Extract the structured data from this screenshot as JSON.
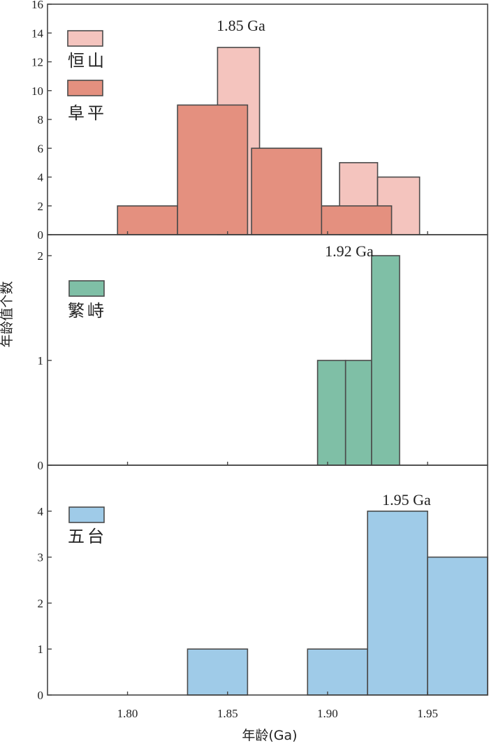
{
  "chart_data": [
    {
      "type": "bar",
      "panel": "top",
      "title": "",
      "annotation": "1.85 Ga",
      "xlim": [
        1.76,
        1.98
      ],
      "ylim": [
        0,
        16
      ],
      "yticks": [
        "0",
        "2",
        "4",
        "6",
        "8",
        "10",
        "12",
        "14",
        "16"
      ],
      "series": [
        {
          "name": "恒山",
          "color": "#F4C4BE",
          "bars": [
            {
              "x0": 1.845,
              "x1": 1.866,
              "value": 13
            },
            {
              "x0": 1.866,
              "x1": 1.886,
              "value": 6
            },
            {
              "x0": 1.906,
              "x1": 1.925,
              "value": 5
            },
            {
              "x0": 1.925,
              "x1": 1.946,
              "value": 4
            }
          ]
        },
        {
          "name": "阜平",
          "color": "#E4907F",
          "bars": [
            {
              "x0": 1.795,
              "x1": 1.825,
              "value": 2
            },
            {
              "x0": 1.825,
              "x1": 1.86,
              "value": 9
            },
            {
              "x0": 1.862,
              "x1": 1.897,
              "value": 6
            },
            {
              "x0": 1.897,
              "x1": 1.932,
              "value": 2
            }
          ]
        }
      ]
    },
    {
      "type": "bar",
      "panel": "middle",
      "title": "",
      "annotation": "1.92 Ga",
      "xlim": [
        1.76,
        1.98
      ],
      "ylim": [
        0,
        2.2
      ],
      "yticks": [
        "0",
        "1",
        "2"
      ],
      "series": [
        {
          "name": "繁峙",
          "color": "#7FBFA6",
          "bars": [
            {
              "x0": 1.895,
              "x1": 1.909,
              "value": 1
            },
            {
              "x0": 1.909,
              "x1": 1.922,
              "value": 1
            },
            {
              "x0": 1.922,
              "x1": 1.936,
              "value": 2
            }
          ]
        }
      ]
    },
    {
      "type": "bar",
      "panel": "bottom",
      "title": "",
      "annotation": "1.95 Ga",
      "xlim": [
        1.76,
        1.98
      ],
      "ylim": [
        0,
        5.0
      ],
      "yticks": [
        "0",
        "1",
        "2",
        "3",
        "4"
      ],
      "xticks": [
        "1.80",
        "1.85",
        "1.90",
        "1.95"
      ],
      "xlabel": "年龄(Ga)",
      "series": [
        {
          "name": "五台",
          "color": "#9FCBE8",
          "bars": [
            {
              "x0": 1.83,
              "x1": 1.86,
              "value": 1
            },
            {
              "x0": 1.89,
              "x1": 1.92,
              "value": 1
            },
            {
              "x0": 1.92,
              "x1": 1.95,
              "value": 4
            },
            {
              "x0": 1.95,
              "x1": 1.98,
              "value": 3
            }
          ]
        }
      ]
    }
  ],
  "ylabel": "年龄值个数",
  "xlabel": "年龄(Ga)"
}
